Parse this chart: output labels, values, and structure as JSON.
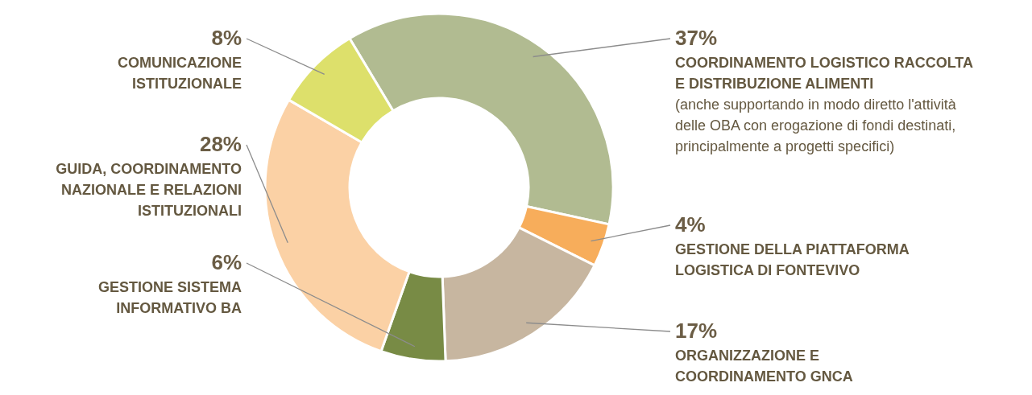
{
  "chart_data": {
    "type": "donut",
    "categories": [
      "COORDINAMENTO LOGISTICO RACCOLTA E DISTRIBUZIONE ALIMENTI (anche supportando in modo diretto l'attività delle OBA con erogazione di fondi destinati, principalmente a progetti specifici)",
      "GESTIONE DELLA PIATTAFORMA LOGISTICA DI FONTEVIVO",
      "ORGANIZZAZIONE E COORDINAMENTO GNCA",
      "GESTIONE SISTEMA INFORMATIVO BA",
      "GUIDA, COORDINAMENTO NAZIONALE E RELAZIONI ISTITUZIONALI",
      "COMUNICAZIONE ISTITUZIONALE"
    ],
    "values": [
      37,
      4,
      17,
      6,
      28,
      8
    ],
    "colors": [
      "#b1bb91",
      "#f7ad5b",
      "#c7b6a0",
      "#788b45",
      "#fbd1a5",
      "#dde06b"
    ],
    "value_labels": [
      "37%",
      "4%",
      "17%",
      "6%",
      "28%",
      "8%"
    ]
  }
}
